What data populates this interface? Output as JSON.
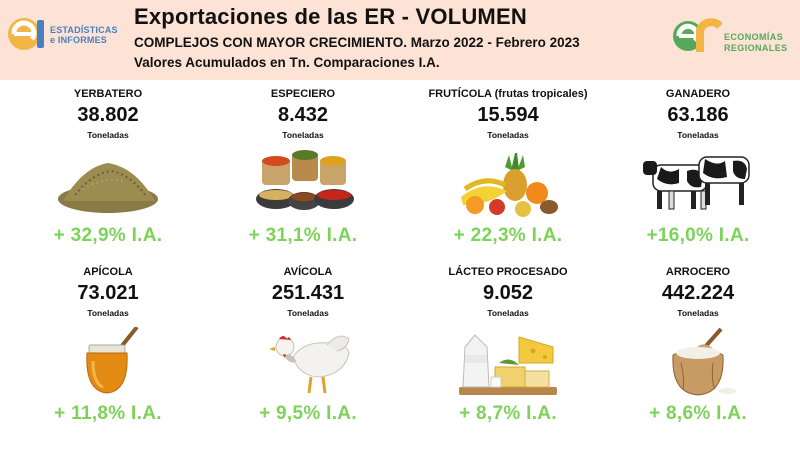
{
  "header": {
    "title": "Exportaciones de las ER - VOLUMEN",
    "subtitle": "COMPLEJOS CON MAYOR CRECIMIENTO. Marzo 2022 - Febrero 2023",
    "subtitle2": "Valores Acumulados en Tn. Comparaciones I.A.",
    "logo_left": {
      "line1": "ESTADÍSTICAS",
      "line2": "e INFORMES"
    },
    "logo_right": {
      "line1": "ECONOMÍAS",
      "line2": "REGIONALES"
    },
    "colors": {
      "background": "#fce3d6",
      "logo_left": "#4a7fc1",
      "logo_right": "#57a85a"
    }
  },
  "accent_color": "#7dd35a",
  "complejos": [
    {
      "name": "YERBATERO",
      "value": "38.802",
      "unit": "Toneladas",
      "growth": "+ 32,9% I.A.",
      "icon": "yerba-mate-icon"
    },
    {
      "name": "ESPECIERO",
      "value": "8.432",
      "unit": "Toneladas",
      "growth": "+ 31,1% I.A.",
      "icon": "spices-icon"
    },
    {
      "name": "FRUTÍCOLA (frutas tropicales)",
      "value": "15.594",
      "unit": "Toneladas",
      "growth": "+ 22,3% I.A.",
      "icon": "tropical-fruits-icon"
    },
    {
      "name": "GANADERO",
      "value": "63.186",
      "unit": "Toneladas",
      "growth": "+16,0% I.A.",
      "icon": "cows-icon"
    },
    {
      "name": "APÍCOLA",
      "value": "73.021",
      "unit": "Toneladas",
      "growth": "+ 11,8% I.A.",
      "icon": "honey-jar-icon"
    },
    {
      "name": "AVÍCOLA",
      "value": "251.431",
      "unit": "Toneladas",
      "growth": "+ 9,5% I.A.",
      "icon": "chicken-icon"
    },
    {
      "name": "LÁCTEO PROCESADO",
      "value": "9.052",
      "unit": "Toneladas",
      "growth": "+ 8,7% I.A.",
      "icon": "dairy-icon"
    },
    {
      "name": "ARROCERO",
      "value": "442.224",
      "unit": "Toneladas",
      "growth": "+ 8,6% I.A.",
      "icon": "rice-sack-icon"
    }
  ]
}
